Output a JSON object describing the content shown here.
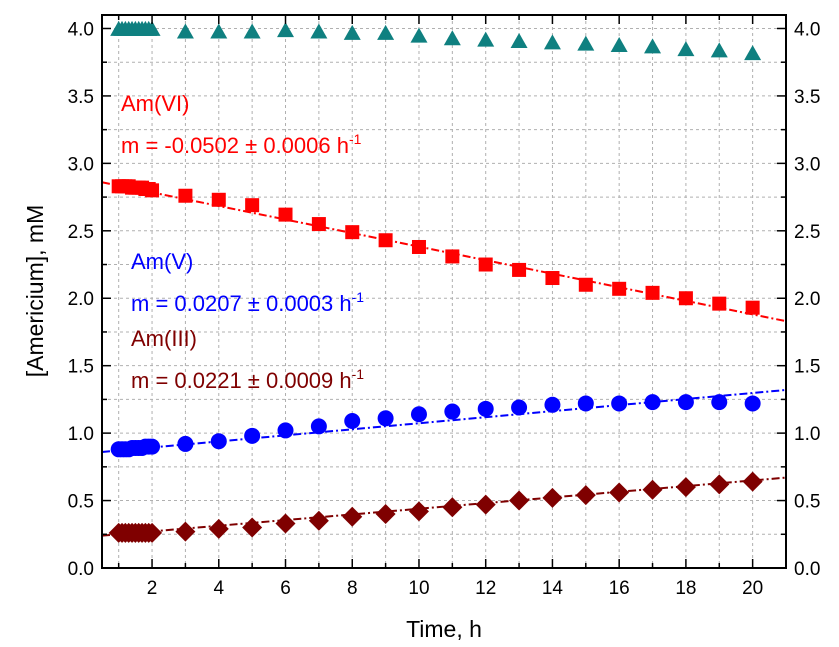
{
  "chart_data": {
    "type": "scatter",
    "xlabel": "Time, h",
    "ylabel": "[Americium], mM",
    "xlim": [
      0.5,
      21
    ],
    "ylim": [
      0,
      4.1
    ],
    "x_ticks": [
      "2",
      "4",
      "6",
      "8",
      "10",
      "12",
      "14",
      "16",
      "18",
      "20"
    ],
    "y_ticks": [
      "0.0",
      "0.5",
      "1.0",
      "1.5",
      "2.0",
      "2.5",
      "3.0",
      "3.5",
      "4.0"
    ],
    "right_y_ticks": [
      "0.0",
      "0.5",
      "1.0",
      "1.5",
      "2.0",
      "2.5",
      "3.0",
      "3.5",
      "4.0"
    ],
    "grid": true,
    "series": [
      {
        "marker": "triangle",
        "color": "#0f8080",
        "x": [
          1.0,
          1.1,
          1.2,
          1.3,
          1.4,
          1.5,
          1.6,
          1.7,
          1.8,
          1.9,
          2,
          3,
          4,
          5,
          6,
          7,
          8,
          9,
          10,
          11,
          12,
          13,
          14,
          15,
          16,
          17,
          18,
          19,
          20
        ],
        "y": [
          3.99,
          3.99,
          3.99,
          3.99,
          3.99,
          3.99,
          3.99,
          3.99,
          3.99,
          3.99,
          3.99,
          3.97,
          3.97,
          3.97,
          3.98,
          3.97,
          3.96,
          3.96,
          3.94,
          3.92,
          3.91,
          3.9,
          3.89,
          3.88,
          3.87,
          3.86,
          3.84,
          3.83,
          3.81
        ]
      },
      {
        "marker": "square",
        "color": "#ff0000",
        "x": [
          1.0,
          1.1,
          1.2,
          1.3,
          1.4,
          1.5,
          1.6,
          1.7,
          1.8,
          1.9,
          2,
          3,
          4,
          5,
          6,
          7,
          8,
          9,
          10,
          11,
          12,
          13,
          14,
          15,
          16,
          17,
          18,
          19,
          20
        ],
        "y": [
          2.83,
          2.83,
          2.83,
          2.83,
          2.82,
          2.82,
          2.82,
          2.82,
          2.81,
          2.81,
          2.8,
          2.76,
          2.73,
          2.69,
          2.62,
          2.55,
          2.49,
          2.43,
          2.38,
          2.31,
          2.25,
          2.21,
          2.15,
          2.1,
          2.07,
          2.04,
          2.0,
          1.96,
          1.93
        ],
        "fit": {
          "x": [
            0.5,
            21
          ],
          "y": [
            2.86,
            1.83
          ]
        }
      },
      {
        "marker": "circle",
        "color": "#0000ff",
        "x": [
          1.0,
          1.1,
          1.2,
          1.3,
          1.4,
          1.5,
          1.6,
          1.7,
          1.8,
          1.9,
          2,
          3,
          4,
          5,
          6,
          7,
          8,
          9,
          10,
          11,
          12,
          13,
          14,
          15,
          16,
          17,
          18,
          19,
          20
        ],
        "y": [
          0.88,
          0.88,
          0.88,
          0.88,
          0.89,
          0.89,
          0.89,
          0.89,
          0.9,
          0.9,
          0.9,
          0.92,
          0.94,
          0.98,
          1.02,
          1.05,
          1.09,
          1.11,
          1.14,
          1.16,
          1.18,
          1.19,
          1.21,
          1.22,
          1.22,
          1.23,
          1.23,
          1.23,
          1.22
        ],
        "fit": {
          "x": [
            0.5,
            21
          ],
          "y": [
            0.86,
            1.32
          ]
        }
      },
      {
        "marker": "diamond",
        "color": "#7f0000",
        "x": [
          1.0,
          1.1,
          1.2,
          1.3,
          1.4,
          1.5,
          1.6,
          1.7,
          1.8,
          1.9,
          2,
          3,
          4,
          5,
          6,
          7,
          8,
          9,
          10,
          11,
          12,
          13,
          14,
          15,
          16,
          17,
          18,
          19,
          20
        ],
        "y": [
          0.26,
          0.26,
          0.26,
          0.26,
          0.26,
          0.26,
          0.26,
          0.26,
          0.26,
          0.26,
          0.26,
          0.27,
          0.29,
          0.3,
          0.33,
          0.35,
          0.38,
          0.4,
          0.42,
          0.45,
          0.47,
          0.5,
          0.52,
          0.54,
          0.56,
          0.58,
          0.6,
          0.62,
          0.64
        ],
        "fit": {
          "x": [
            0.5,
            21
          ],
          "y": [
            0.24,
            0.67
          ]
        }
      }
    ],
    "annotations": [
      {
        "name": "Am(VI)",
        "color": "#ff0000",
        "label": "Am(VI)",
        "slope_text": "m = -0.0502 ± 0.0006 h",
        "sup": "-1"
      },
      {
        "name": "Am(V)",
        "color": "#0000ff",
        "label": "Am(V)",
        "slope_text": "m = 0.0207 ± 0.0003 h",
        "sup": "-1"
      },
      {
        "name": "Am(III)",
        "color": "#7f0000",
        "label": "Am(III)",
        "slope_text": "m = 0.0221 ± 0.0009 h",
        "sup": "-1"
      }
    ]
  }
}
